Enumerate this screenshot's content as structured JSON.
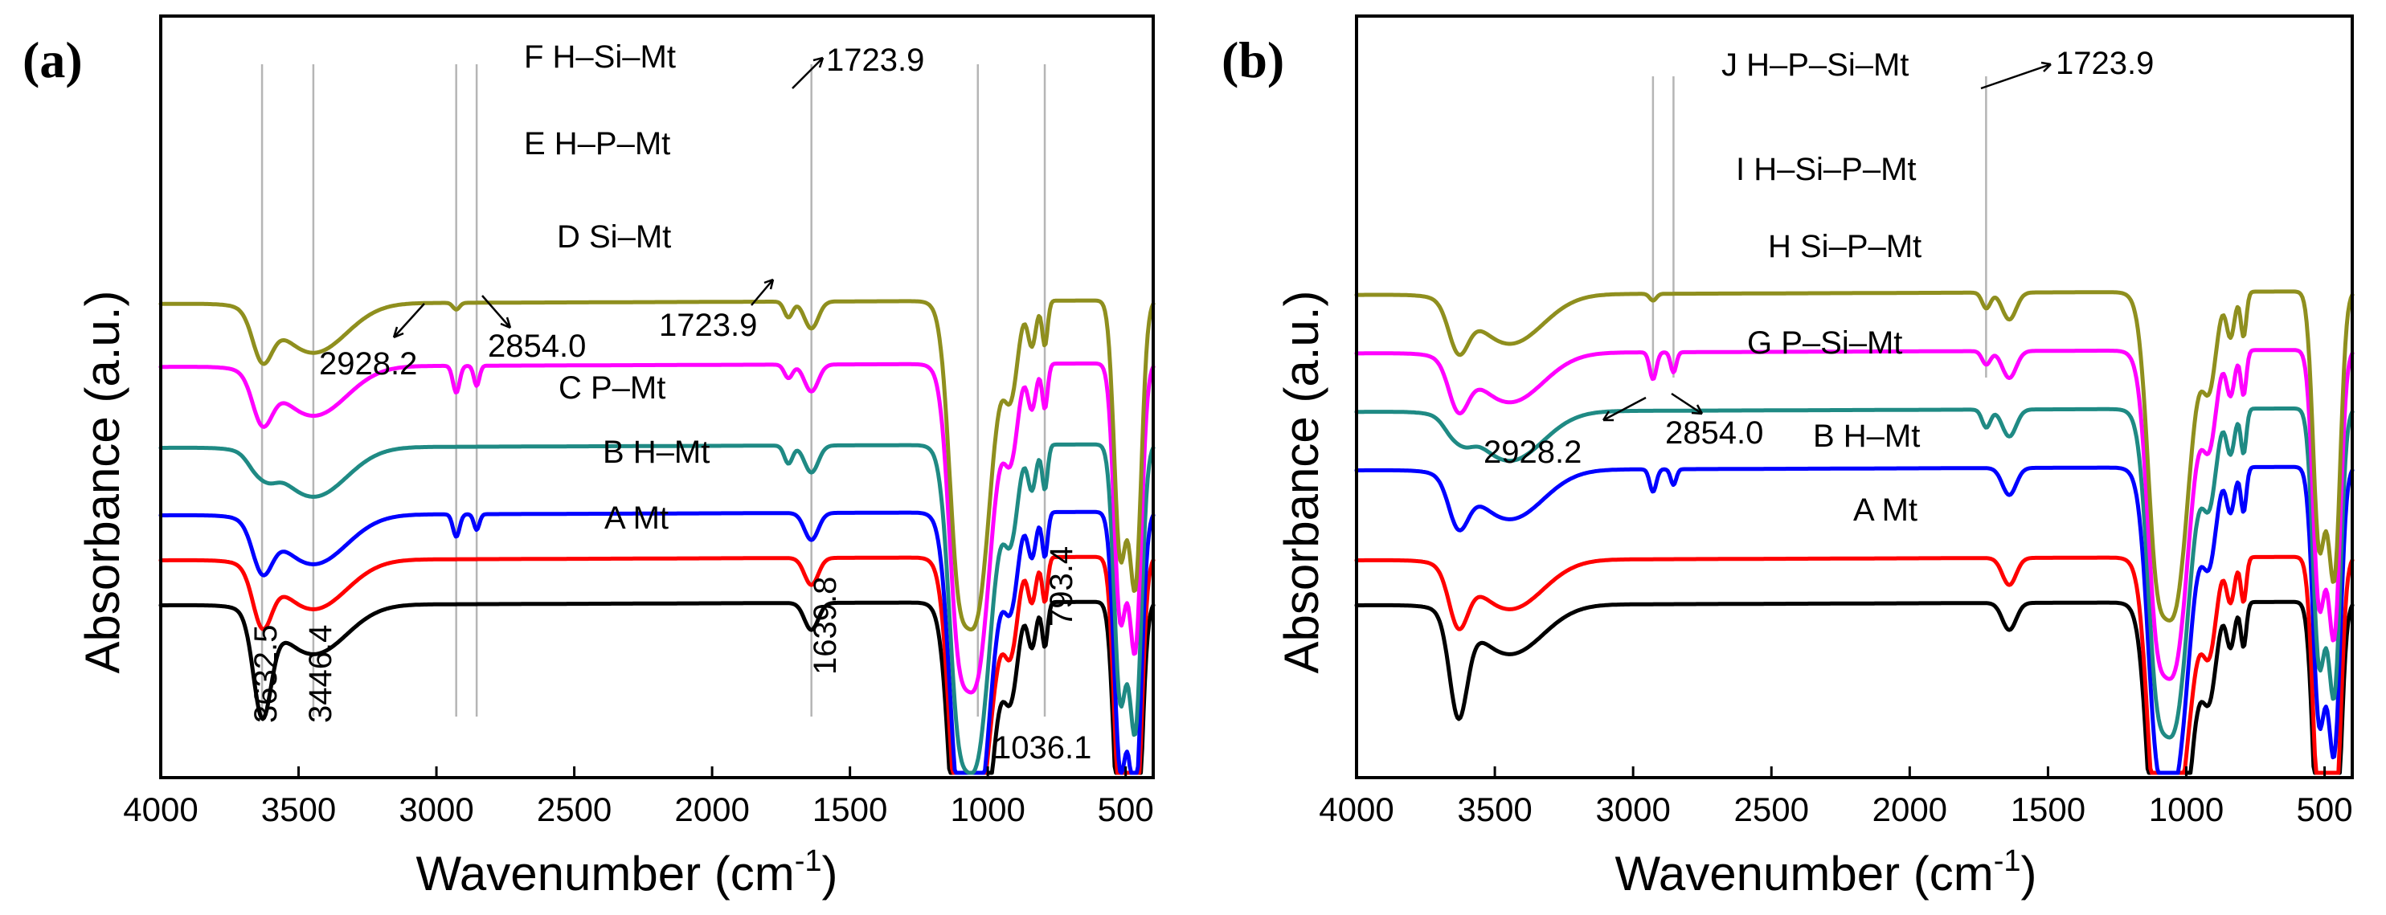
{
  "chart_data": [
    {
      "panel": "(a)",
      "type": "line",
      "xlabel": "Wavenumber (cm",
      "xlabel_sup": "-1",
      "xlabel_close": ")",
      "ylabel": "Absorbance (a.u.)",
      "xlim": [
        4000,
        400
      ],
      "xticks": [
        4000,
        3500,
        3000,
        2500,
        2000,
        1500,
        1000,
        500
      ],
      "series": [
        {
          "name": "A Mt",
          "color": "#000000",
          "offset": 0.0,
          "model": "A"
        },
        {
          "name": "B H–Mt",
          "color": "#ff0000",
          "offset": 0.1,
          "model": "B"
        },
        {
          "name": "C P–Mt",
          "color": "#0000ff",
          "offset": 0.2,
          "model": "C"
        },
        {
          "name": "D Si–Mt",
          "color": "#1f8a84",
          "offset": 0.35,
          "model": "D"
        },
        {
          "name": "E H–P–Mt",
          "color": "#ff00ff",
          "offset": 0.53,
          "model": "E"
        },
        {
          "name": "F H–Si–Mt",
          "color": "#8f8f1e",
          "offset": 0.67,
          "model": "F"
        }
      ],
      "reference_lines": [
        3632.5,
        3446.4,
        2928.2,
        2854.0,
        1639.8,
        1036.1,
        793.4
      ],
      "annotations": [
        "3632.5",
        "3446.4",
        "1639.8",
        "793.4",
        "1036.1",
        "2928.2",
        "2854.0",
        "1723.9",
        "1723.9"
      ]
    },
    {
      "panel": "(b)",
      "type": "line",
      "xlabel": "Wavenumber (cm",
      "xlabel_sup": "-1",
      "xlabel_close": ")",
      "ylabel": "Absorbance (a.u.)",
      "xlim": [
        4000,
        400
      ],
      "xticks": [
        4000,
        3500,
        3000,
        2500,
        2000,
        1500,
        1000,
        500
      ],
      "series": [
        {
          "name": "A Mt",
          "color": "#000000",
          "offset": 0.0,
          "model": "A"
        },
        {
          "name": "B H–Mt",
          "color": "#ff0000",
          "offset": 0.1,
          "model": "B"
        },
        {
          "name": "G P–Si–Mt",
          "color": "#0000ff",
          "offset": 0.3,
          "model": "G"
        },
        {
          "name": "H Si–P–Mt",
          "color": "#1f8a84",
          "offset": 0.43,
          "model": "D"
        },
        {
          "name": "I H–Si–P–Mt",
          "color": "#ff00ff",
          "offset": 0.56,
          "model": "E"
        },
        {
          "name": "J H–P–Si–Mt",
          "color": "#8f8f1e",
          "offset": 0.69,
          "model": "F"
        }
      ],
      "reference_lines": [
        2928.2,
        2854.0,
        1723.9
      ],
      "annotations": [
        "2928.2",
        "2854.0",
        "1723.9"
      ]
    }
  ]
}
